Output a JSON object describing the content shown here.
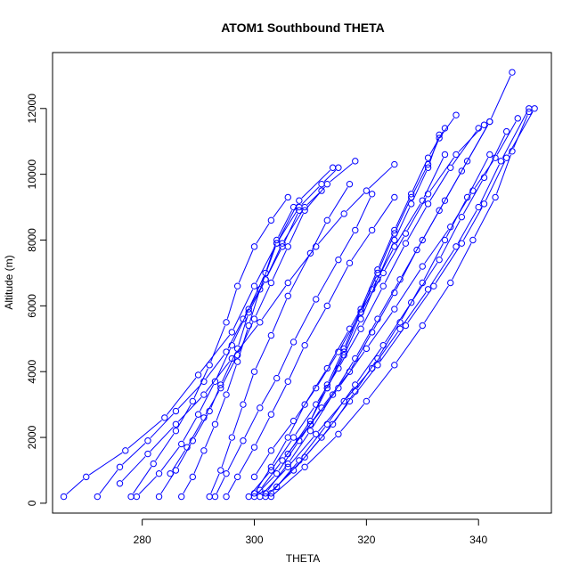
{
  "chart_data": {
    "type": "scatter",
    "title": "ATOM1 Southbound THETA",
    "xlabel": "THETA",
    "ylabel": "Altitude (m)",
    "xlim": [
      264,
      353
    ],
    "ylim": [
      -300,
      13700
    ],
    "xticks": [
      280,
      300,
      320,
      340
    ],
    "yticks": [
      0,
      2000,
      4000,
      6000,
      8000,
      10000,
      12000
    ],
    "grid": false,
    "legend": "none",
    "series_color": "#0000ff",
    "style": "points connected by lines",
    "series": [
      {
        "x": [
          266,
          270,
          277,
          284,
          290,
          296,
          300,
          304,
          308,
          312,
          315
        ],
        "y": [
          200,
          800,
          1600,
          2600,
          3900,
          5200,
          6600,
          7900,
          9000,
          9700,
          10200
        ]
      },
      {
        "x": [
          272,
          276,
          281,
          286,
          291,
          295,
          298,
          302,
          305,
          309,
          312
        ],
        "y": [
          200,
          1100,
          1900,
          2800,
          3700,
          4600,
          5600,
          6800,
          7900,
          9000,
          9500
        ]
      },
      {
        "x": [
          278,
          282,
          286,
          289,
          292,
          295,
          297,
          300,
          303,
          306
        ],
        "y": [
          200,
          1200,
          2200,
          3100,
          4200,
          5500,
          6600,
          7800,
          8600,
          9300
        ]
      },
      {
        "x": [
          279,
          283,
          287,
          290,
          293,
          296,
          299,
          302,
          304,
          307
        ],
        "y": [
          200,
          900,
          1800,
          2700,
          3700,
          4800,
          5900,
          7000,
          8000,
          9000
        ]
      },
      {
        "x": [
          283,
          286,
          289,
          292,
          294,
          297,
          299,
          302,
          305,
          308
        ],
        "y": [
          200,
          1000,
          1900,
          2800,
          3600,
          4700,
          5800,
          6800,
          7800,
          8900
        ]
      },
      {
        "x": [
          287,
          289,
          291,
          293,
          295,
          297,
          299,
          301,
          304,
          308,
          314
        ],
        "y": [
          200,
          800,
          1600,
          2400,
          3300,
          4300,
          5400,
          6500,
          7900,
          9200,
          10200
        ]
      },
      {
        "x": [
          292,
          294,
          296,
          298,
          300,
          303,
          306,
          310,
          313,
          317
        ],
        "y": [
          200,
          1000,
          2000,
          3000,
          4000,
          5100,
          6300,
          7600,
          8600,
          9700
        ]
      },
      {
        "x": [
          293,
          295,
          298,
          301,
          304,
          307,
          311,
          315,
          318,
          321
        ],
        "y": [
          200,
          900,
          1900,
          2900,
          3800,
          4900,
          6200,
          7400,
          8300,
          9400
        ]
      },
      {
        "x": [
          295,
          297,
          300,
          303,
          306,
          309,
          313,
          317,
          321,
          325
        ],
        "y": [
          200,
          800,
          1700,
          2700,
          3700,
          4800,
          6000,
          7300,
          8300,
          9300
        ]
      },
      {
        "x": [
          299,
          303,
          307,
          311,
          315,
          319,
          323,
          327,
          331,
          335,
          340
        ],
        "y": [
          200,
          1000,
          2000,
          3000,
          4100,
          5300,
          6600,
          7900,
          9100,
          10200,
          11400
        ]
      },
      {
        "x": [
          300,
          304,
          308,
          312,
          317,
          321,
          325,
          329,
          333,
          337,
          342
        ],
        "y": [
          200,
          900,
          1900,
          2900,
          4000,
          5200,
          6400,
          7700,
          8900,
          10100,
          11600
        ]
      },
      {
        "x": [
          300,
          303,
          306,
          309,
          313,
          317,
          321,
          325,
          330,
          334
        ],
        "y": [
          300,
          1100,
          2000,
          3000,
          4100,
          5300,
          6500,
          7800,
          9200,
          10600
        ]
      },
      {
        "x": [
          301,
          306,
          311,
          316,
          321,
          326,
          331,
          336,
          340,
          344,
          349
        ],
        "y": [
          200,
          1100,
          2100,
          3100,
          4100,
          5300,
          6500,
          7800,
          9000,
          10400,
          12000
        ]
      },
      {
        "x": [
          302,
          307,
          312,
          317,
          322,
          327,
          332,
          337,
          341,
          345,
          350
        ],
        "y": [
          200,
          1000,
          2000,
          3100,
          4200,
          5400,
          6600,
          7900,
          9100,
          10500,
          12000
        ]
      },
      {
        "x": [
          302,
          306,
          310,
          314,
          318,
          322,
          326,
          330,
          334,
          338,
          342,
          346
        ],
        "y": [
          300,
          1200,
          2200,
          3300,
          4400,
          5600,
          6800,
          8000,
          9200,
          10400,
          11600,
          13100
        ]
      },
      {
        "x": [
          301,
          305,
          310,
          315,
          320,
          325,
          330,
          335,
          339,
          343,
          347
        ],
        "y": [
          400,
          1300,
          2400,
          3500,
          4700,
          5900,
          7200,
          8400,
          9500,
          10500,
          11700
        ]
      },
      {
        "x": [
          303,
          309,
          315,
          320,
          325,
          330,
          335,
          339,
          343,
          346,
          349
        ],
        "y": [
          200,
          1100,
          2100,
          3100,
          4200,
          5400,
          6700,
          8000,
          9300,
          10700,
          11900
        ]
      },
      {
        "x": [
          304,
          309,
          314,
          318,
          322,
          326,
          330,
          334,
          338,
          342
        ],
        "y": [
          500,
          1400,
          2400,
          3400,
          4400,
          5500,
          6700,
          8000,
          9300,
          10600
        ]
      },
      {
        "x": [
          300,
          303,
          307,
          311,
          315,
          319,
          323,
          327,
          331,
          336,
          341
        ],
        "y": [
          800,
          1600,
          2500,
          3500,
          4600,
          5800,
          7000,
          8200,
          9400,
          10600,
          11500
        ]
      },
      {
        "x": [
          303,
          308,
          313,
          318,
          323,
          328,
          333,
          337,
          341,
          345
        ],
        "y": [
          300,
          1300,
          2400,
          3600,
          4800,
          6100,
          7400,
          8700,
          9900,
          11300
        ]
      },
      {
        "x": [
          306,
          310,
          313,
          316,
          319,
          322,
          325,
          328,
          331,
          333
        ],
        "y": [
          1500,
          2500,
          3500,
          4500,
          5600,
          6800,
          8000,
          9100,
          10200,
          11200
        ]
      },
      {
        "x": [
          310,
          313,
          316,
          319,
          322,
          325,
          328,
          331,
          334
        ],
        "y": [
          2500,
          3600,
          4700,
          5900,
          7100,
          8300,
          9400,
          10500,
          11400
        ]
      },
      {
        "x": [
          313,
          316,
          319,
          322,
          325,
          328,
          331,
          333,
          336
        ],
        "y": [
          3500,
          4600,
          5800,
          7000,
          8200,
          9300,
          10300,
          11100,
          11800
        ]
      },
      {
        "x": [
          285,
          288,
          291,
          294,
          297,
          300,
          303,
          306,
          309,
          313,
          318
        ],
        "y": [
          900,
          1700,
          2600,
          3500,
          4500,
          5600,
          6700,
          7800,
          8900,
          9700,
          10400
        ]
      },
      {
        "x": [
          276,
          281,
          286,
          291,
          296,
          301,
          306,
          311,
          316,
          320,
          325
        ],
        "y": [
          600,
          1500,
          2400,
          3300,
          4400,
          5500,
          6700,
          7800,
          8800,
          9500,
          10300
        ]
      }
    ]
  }
}
